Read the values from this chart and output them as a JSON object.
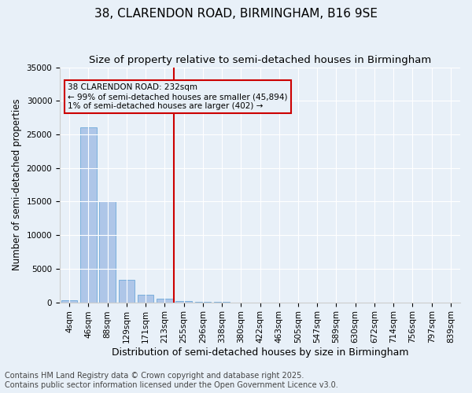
{
  "title1": "38, CLARENDON ROAD, BIRMINGHAM, B16 9SE",
  "title2": "Size of property relative to semi-detached houses in Birmingham",
  "xlabel": "Distribution of semi-detached houses by size in Birmingham",
  "ylabel": "Number of semi-detached properties",
  "categories": [
    "4sqm",
    "46sqm",
    "88sqm",
    "129sqm",
    "171sqm",
    "213sqm",
    "255sqm",
    "296sqm",
    "338sqm",
    "380sqm",
    "422sqm",
    "463sqm",
    "505sqm",
    "547sqm",
    "589sqm",
    "630sqm",
    "672sqm",
    "714sqm",
    "756sqm",
    "797sqm",
    "839sqm"
  ],
  "values": [
    350,
    26100,
    15100,
    3300,
    1100,
    500,
    200,
    50,
    20,
    10,
    5,
    3,
    2,
    1,
    1,
    0,
    0,
    0,
    0,
    0,
    0
  ],
  "bar_color": "#aec6e8",
  "bar_edge_color": "#5a9fd4",
  "vline_x": 5,
  "vline_color": "#cc0000",
  "annotation_title": "38 CLARENDON ROAD: 232sqm",
  "annotation_line1": "← 99% of semi-detached houses are smaller (45,894)",
  "annotation_line2": "1% of semi-detached houses are larger (402) →",
  "annotation_box_color": "#cc0000",
  "ylim": [
    0,
    35000
  ],
  "yticks": [
    0,
    5000,
    10000,
    15000,
    20000,
    25000,
    30000,
    35000
  ],
  "footer1": "Contains HM Land Registry data © Crown copyright and database right 2025.",
  "footer2": "Contains public sector information licensed under the Open Government Licence v3.0.",
  "bg_color": "#e8f0f8",
  "grid_color": "#ffffff",
  "title1_fontsize": 11,
  "title2_fontsize": 9.5,
  "xlabel_fontsize": 9,
  "ylabel_fontsize": 8.5,
  "tick_fontsize": 7.5,
  "footer_fontsize": 7
}
